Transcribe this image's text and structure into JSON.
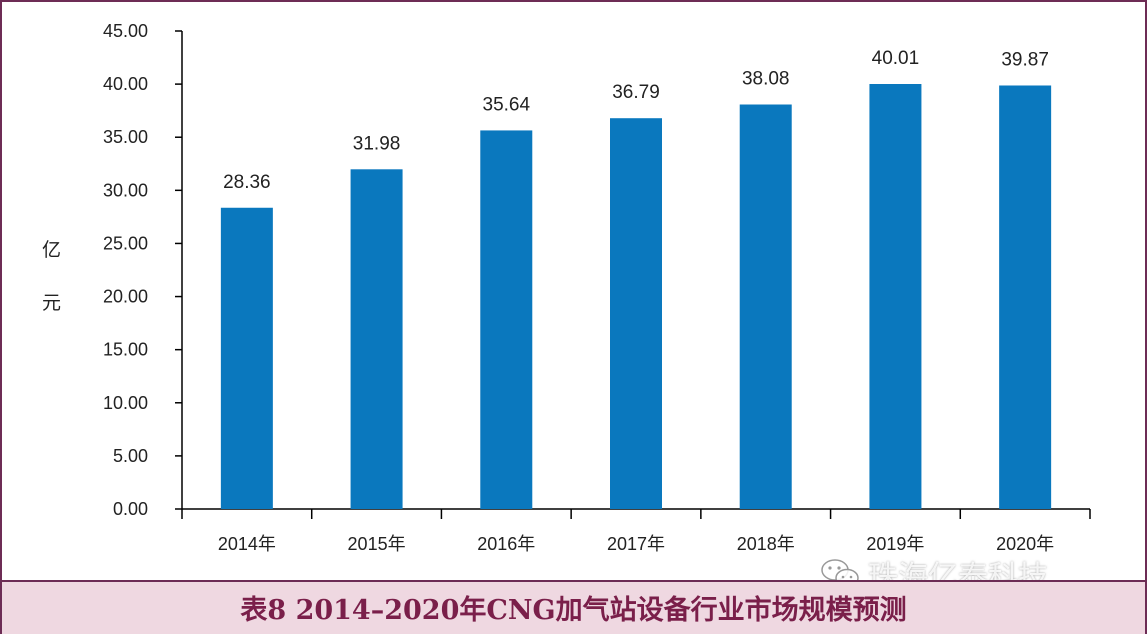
{
  "chart_data": {
    "type": "bar",
    "categories": [
      "2014年",
      "2015年",
      "2016年",
      "2017年",
      "2018年",
      "2019年",
      "2020年"
    ],
    "values": [
      28.36,
      31.98,
      35.64,
      36.79,
      38.08,
      40.01,
      39.87
    ],
    "data_labels": [
      "28.36",
      "31.98",
      "35.64",
      "36.79",
      "38.08",
      "40.01",
      "39.87"
    ],
    "yticks": [
      "0.00",
      "5.00",
      "10.00",
      "15.00",
      "20.00",
      "25.00",
      "30.00",
      "35.00",
      "40.00",
      "45.00"
    ],
    "ylim": [
      0,
      45
    ],
    "ylabel": "亿元",
    "ylabel_chars": [
      "亿",
      "元"
    ],
    "title": "",
    "xlabel": "",
    "grid": false,
    "bar_color": "#0a78be"
  },
  "caption": "表8 2014–2020年CNG加气站设备行业市场规模预测",
  "watermark": "珠海亿泰科技",
  "colors": {
    "frame": "#6d2c55",
    "caption_bg": "#efd8e1",
    "caption_text": "#7a1f4a"
  }
}
